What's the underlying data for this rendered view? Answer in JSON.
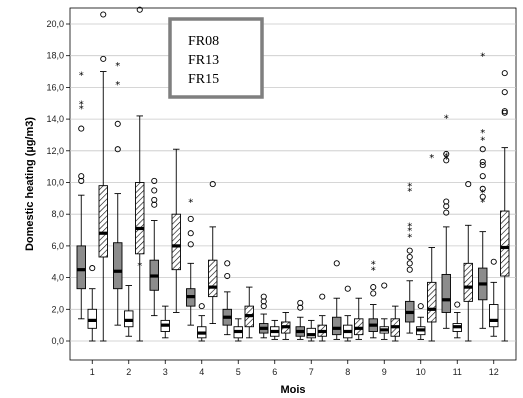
{
  "chart_data": {
    "type": "boxplot",
    "title": "",
    "xlabel": "Mois",
    "ylabel": "Domestic heating (µg/m3)",
    "ylim": [
      0,
      21
    ],
    "yticks": [
      "0,0",
      "2,0",
      "4,0",
      "6,0",
      "8,0",
      "10,0",
      "12,0",
      "14,0",
      "16,0",
      "18,0",
      "20,0"
    ],
    "categories": [
      "1",
      "2",
      "3",
      "4",
      "5",
      "6",
      "7",
      "8",
      "9",
      "10",
      "11",
      "12"
    ],
    "legend_placement": "top-center",
    "series": [
      {
        "name": "FR08",
        "fill": "grey",
        "boxes": [
          {
            "min": 1.4,
            "q1": 3.3,
            "median": 4.5,
            "q3": 6.0,
            "max": 9.2,
            "outliers": [
              10.1,
              10.4,
              13.4
            ],
            "extremes": [
              14.7,
              15.0,
              16.8
            ]
          },
          {
            "min": 1.0,
            "q1": 3.3,
            "median": 4.4,
            "q3": 6.2,
            "max": 9.3,
            "outliers": [
              12.1,
              13.7
            ],
            "extremes": [
              16.2,
              17.4
            ]
          },
          {
            "min": 1.6,
            "q1": 3.2,
            "median": 4.1,
            "q3": 5.1,
            "max": 7.6,
            "outliers": [
              8.6,
              8.9,
              9.5,
              10.1
            ],
            "extremes": []
          },
          {
            "min": 1.0,
            "q1": 2.2,
            "median": 2.8,
            "q3": 3.3,
            "max": 4.9,
            "outliers": [
              6.1,
              6.8,
              7.7
            ],
            "extremes": [
              8.8
            ]
          },
          {
            "min": 0.4,
            "q1": 1.0,
            "median": 1.5,
            "q3": 2.0,
            "max": 3.1,
            "outliers": [
              4.1,
              4.9
            ],
            "extremes": []
          },
          {
            "min": 0.2,
            "q1": 0.5,
            "median": 0.8,
            "q3": 1.1,
            "max": 1.7,
            "outliers": [
              2.2,
              2.5,
              2.8
            ],
            "extremes": []
          },
          {
            "min": 0.1,
            "q1": 0.3,
            "median": 0.6,
            "q3": 0.9,
            "max": 1.5,
            "outliers": [
              2.1,
              2.4
            ],
            "extremes": []
          },
          {
            "min": 0.1,
            "q1": 0.4,
            "median": 0.8,
            "q3": 1.5,
            "max": 2.7,
            "outliers": [
              4.9
            ],
            "extremes": []
          },
          {
            "min": 0.2,
            "q1": 0.6,
            "median": 1.0,
            "q3": 1.4,
            "max": 2.3,
            "outliers": [
              3.0,
              3.4
            ],
            "extremes": [
              4.5,
              4.9
            ]
          },
          {
            "min": 0.5,
            "q1": 1.2,
            "median": 1.8,
            "q3": 2.5,
            "max": 3.8,
            "outliers": [
              4.5,
              4.9,
              5.3,
              5.7
            ],
            "extremes": [
              6.6,
              7.0,
              7.3,
              9.5,
              9.8
            ]
          },
          {
            "min": 0.8,
            "q1": 1.8,
            "median": 2.6,
            "q3": 4.2,
            "max": 7.2,
            "outliers": [
              8.1,
              8.5,
              8.8,
              11.4,
              11.8
            ],
            "extremes": [
              11.5,
              11.7,
              14.1
            ]
          },
          {
            "min": 0.8,
            "q1": 2.6,
            "median": 3.6,
            "q3": 4.6,
            "max": 6.9,
            "outliers": [
              9.1,
              9.6,
              10.4,
              11.1,
              11.3,
              12.1
            ],
            "extremes": [
              8.8,
              9.4,
              12.7,
              13.2,
              18.0
            ]
          }
        ]
      },
      {
        "name": "FR13",
        "fill": "white",
        "boxes": [
          {
            "min": 0.0,
            "q1": 0.8,
            "median": 1.3,
            "q3": 2.0,
            "max": 3.3,
            "outliers": [
              4.6
            ],
            "extremes": []
          },
          {
            "min": 0.3,
            "q1": 0.9,
            "median": 1.3,
            "q3": 1.9,
            "max": 3.5,
            "outliers": [],
            "extremes": []
          },
          {
            "min": 0.2,
            "q1": 0.6,
            "median": 1.0,
            "q3": 1.3,
            "max": 2.2,
            "outliers": [],
            "extremes": []
          },
          {
            "min": 0.0,
            "q1": 0.2,
            "median": 0.5,
            "q3": 0.9,
            "max": 1.6,
            "outliers": [
              2.2
            ],
            "extremes": []
          },
          {
            "min": 0.0,
            "q1": 0.2,
            "median": 0.6,
            "q3": 0.9,
            "max": 1.4,
            "outliers": [],
            "extremes": []
          },
          {
            "min": 0.1,
            "q1": 0.3,
            "median": 0.6,
            "q3": 0.9,
            "max": 1.3,
            "outliers": [],
            "extremes": []
          },
          {
            "min": 0.0,
            "q1": 0.2,
            "median": 0.4,
            "q3": 0.8,
            "max": 1.3,
            "outliers": [],
            "extremes": []
          },
          {
            "min": 0.0,
            "q1": 0.2,
            "median": 0.6,
            "q3": 1.0,
            "max": 1.6,
            "outliers": [
              3.3
            ],
            "extremes": []
          },
          {
            "min": 0.1,
            "q1": 0.5,
            "median": 0.7,
            "q3": 0.9,
            "max": 1.4,
            "outliers": [
              3.5
            ],
            "extremes": []
          },
          {
            "min": 0.1,
            "q1": 0.4,
            "median": 0.7,
            "q3": 0.9,
            "max": 1.5,
            "outliers": [
              2.2
            ],
            "extremes": []
          },
          {
            "min": 0.2,
            "q1": 0.6,
            "median": 0.9,
            "q3": 1.1,
            "max": 1.8,
            "outliers": [
              2.3
            ],
            "extremes": []
          },
          {
            "min": 0.3,
            "q1": 0.9,
            "median": 1.3,
            "q3": 2.3,
            "max": 3.7,
            "outliers": [
              5.0
            ],
            "extremes": []
          }
        ]
      },
      {
        "name": "FR15",
        "fill": "hatched",
        "boxes": [
          {
            "min": 0.0,
            "q1": 5.3,
            "median": 6.8,
            "q3": 9.8,
            "max": 17.0,
            "outliers": [
              17.8,
              20.6
            ],
            "extremes": []
          },
          {
            "min": 0.0,
            "q1": 5.5,
            "median": 7.1,
            "q3": 10.0,
            "max": 14.2,
            "outliers": [
              20.9
            ],
            "extremes": [
              4.8
            ]
          },
          {
            "min": 1.8,
            "q1": 4.5,
            "median": 6.0,
            "q3": 8.0,
            "max": 12.1,
            "outliers": [],
            "extremes": []
          },
          {
            "min": 1.1,
            "q1": 2.8,
            "median": 3.4,
            "q3": 5.1,
            "max": 7.2,
            "outliers": [
              9.9
            ],
            "extremes": []
          },
          {
            "min": 0.2,
            "q1": 0.9,
            "median": 1.6,
            "q3": 2.2,
            "max": 3.4,
            "outliers": [],
            "extremes": []
          },
          {
            "min": 0.1,
            "q1": 0.5,
            "median": 0.9,
            "q3": 1.2,
            "max": 1.8,
            "outliers": [],
            "extremes": []
          },
          {
            "min": 0.0,
            "q1": 0.3,
            "median": 0.6,
            "q3": 1.0,
            "max": 1.6,
            "outliers": [
              2.8
            ],
            "extremes": []
          },
          {
            "min": 0.1,
            "q1": 0.4,
            "median": 0.8,
            "q3": 1.4,
            "max": 2.7,
            "outliers": [],
            "extremes": []
          },
          {
            "min": 0.0,
            "q1": 0.3,
            "median": 0.9,
            "q3": 1.4,
            "max": 2.2,
            "outliers": [],
            "extremes": []
          },
          {
            "min": 0.0,
            "q1": 1.2,
            "median": 2.0,
            "q3": 3.7,
            "max": 5.9,
            "outliers": [],
            "extremes": [
              11.6
            ]
          },
          {
            "min": 0.0,
            "q1": 2.5,
            "median": 3.4,
            "q3": 4.9,
            "max": 7.3,
            "outliers": [
              9.9
            ],
            "extremes": []
          },
          {
            "min": 0.0,
            "q1": 4.1,
            "median": 5.9,
            "q3": 8.2,
            "max": 12.2,
            "outliers": [
              14.4,
              14.5,
              15.7,
              16.9
            ],
            "extremes": []
          }
        ]
      }
    ],
    "grid": "horizontal-major",
    "colors": {
      "grey": "#8c8c8c",
      "white": "#ffffff",
      "stroke": "#000000",
      "gridline": "#c8c8c8",
      "legend_border": "#7f7f7f"
    }
  }
}
